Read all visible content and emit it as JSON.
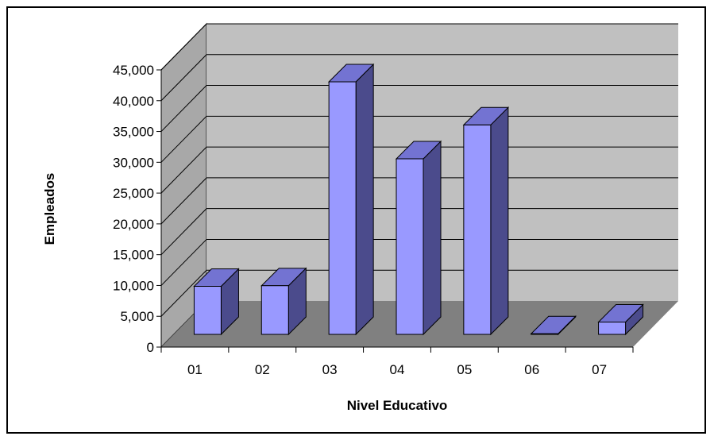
{
  "chart_data": {
    "type": "bar",
    "style": "3d-column",
    "categories": [
      "01",
      "02",
      "03",
      "04",
      "05",
      "06",
      "07"
    ],
    "values": [
      7800,
      7900,
      41000,
      28500,
      34000,
      100,
      2000
    ],
    "xlabel": "Nivel Educativo",
    "ylabel": "Empleados",
    "ylim": [
      0,
      45000
    ],
    "yticks": [
      "0",
      "5,000",
      "10,000",
      "15,000",
      "20,000",
      "25,000",
      "30,000",
      "35,000",
      "40,000",
      "45,000"
    ],
    "grid": true,
    "legend": "none",
    "colors": {
      "bar_front": "#9999ff",
      "bar_top": "#7373d2",
      "bar_side": "#4b4b8c",
      "back_wall": "#c0c0c0",
      "side_wall": "#a8a8a8",
      "floor": "#808080"
    }
  }
}
